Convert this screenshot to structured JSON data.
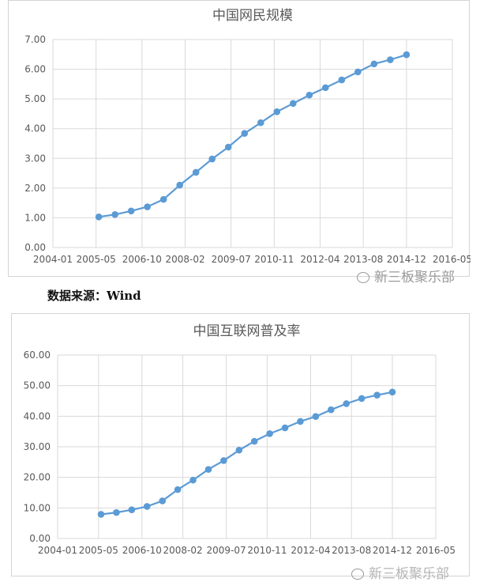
{
  "source_label": "数据来源：Wind",
  "watermark_text": "新三板聚乐部",
  "watermark_text_2": "新三板聚乐部",
  "colors": {
    "series": "#5b9bd5",
    "grid": "#d9d9d9",
    "axis_text": "#595959",
    "title": "#595959"
  },
  "chart_data": [
    {
      "type": "line",
      "title": "中国网民规模",
      "xlabel": "",
      "ylabel": "",
      "x_ticks": [
        "2004-01",
        "2005-05",
        "2006-10",
        "2008-02",
        "2009-07",
        "2010-11",
        "2012-04",
        "2013-08",
        "2014-12",
        "2016-05"
      ],
      "ylim": [
        0,
        7
      ],
      "y_ticks": [
        "0.00",
        "1.00",
        "2.00",
        "3.00",
        "4.00",
        "5.00",
        "6.00",
        "7.00"
      ],
      "grid": true,
      "legend": "none",
      "x": [
        "2005-06",
        "2005-12",
        "2006-06",
        "2006-12",
        "2007-06",
        "2007-12",
        "2008-06",
        "2008-12",
        "2009-06",
        "2009-12",
        "2010-06",
        "2010-12",
        "2011-06",
        "2011-12",
        "2012-06",
        "2012-12",
        "2013-06",
        "2013-12",
        "2014-06",
        "2014-12"
      ],
      "series": [
        {
          "values": [
            1.03,
            1.11,
            1.23,
            1.37,
            1.62,
            2.1,
            2.53,
            2.98,
            3.38,
            3.84,
            4.2,
            4.57,
            4.85,
            5.13,
            5.38,
            5.64,
            5.91,
            6.18,
            6.32,
            6.49
          ]
        }
      ]
    },
    {
      "type": "line",
      "title": "中国互联网普及率",
      "xlabel": "",
      "ylabel": "",
      "x_ticks": [
        "2004-01",
        "2005-05",
        "2006-10",
        "2008-02",
        "2009-07",
        "2010-11",
        "2012-04",
        "2013-08",
        "2014-12",
        "2016-05"
      ],
      "ylim": [
        0,
        60
      ],
      "y_ticks": [
        "0.00",
        "10.00",
        "20.00",
        "30.00",
        "40.00",
        "50.00",
        "60.00"
      ],
      "grid": true,
      "legend": "none",
      "x": [
        "2005-06",
        "2005-12",
        "2006-06",
        "2006-12",
        "2007-06",
        "2007-12",
        "2008-06",
        "2008-12",
        "2009-06",
        "2009-12",
        "2010-06",
        "2010-12",
        "2011-06",
        "2011-12",
        "2012-06",
        "2012-12",
        "2013-06",
        "2013-12",
        "2014-06",
        "2014-12"
      ],
      "series": [
        {
          "values": [
            7.9,
            8.5,
            9.4,
            10.5,
            12.3,
            16.0,
            19.1,
            22.6,
            25.5,
            28.9,
            31.8,
            34.3,
            36.2,
            38.3,
            39.9,
            42.1,
            44.1,
            45.8,
            46.9,
            47.9
          ]
        }
      ]
    }
  ]
}
